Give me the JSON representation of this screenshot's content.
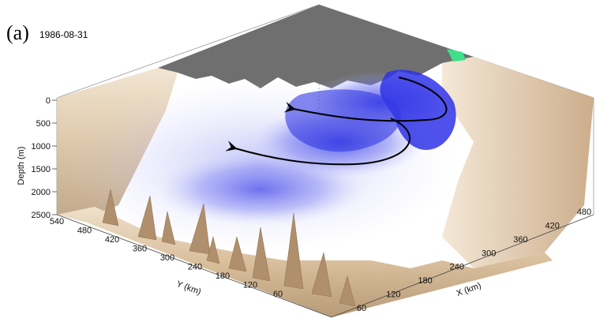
{
  "panel_label": "(a)",
  "date": "1986-08-31",
  "axes": {
    "depth": {
      "label": "Depth (m)",
      "ticks": [
        "0",
        "500",
        "1000",
        "1500",
        "2000",
        "2500"
      ]
    },
    "y": {
      "label": "Y (km)",
      "ticks": [
        "540",
        "480",
        "420",
        "360",
        "300",
        "240",
        "180",
        "120",
        "60"
      ]
    },
    "x": {
      "label": "X (km)",
      "ticks": [
        "60",
        "120",
        "180",
        "240",
        "300",
        "360",
        "420",
        "480"
      ]
    }
  },
  "colors": {
    "land": "#6f6f6f",
    "bathymetry": "#d8bf9e",
    "water_mass": "#2a2ee0",
    "arrow": "#000000"
  },
  "icons": [
    "flow-arrow-upper",
    "flow-arrow-lower"
  ]
}
